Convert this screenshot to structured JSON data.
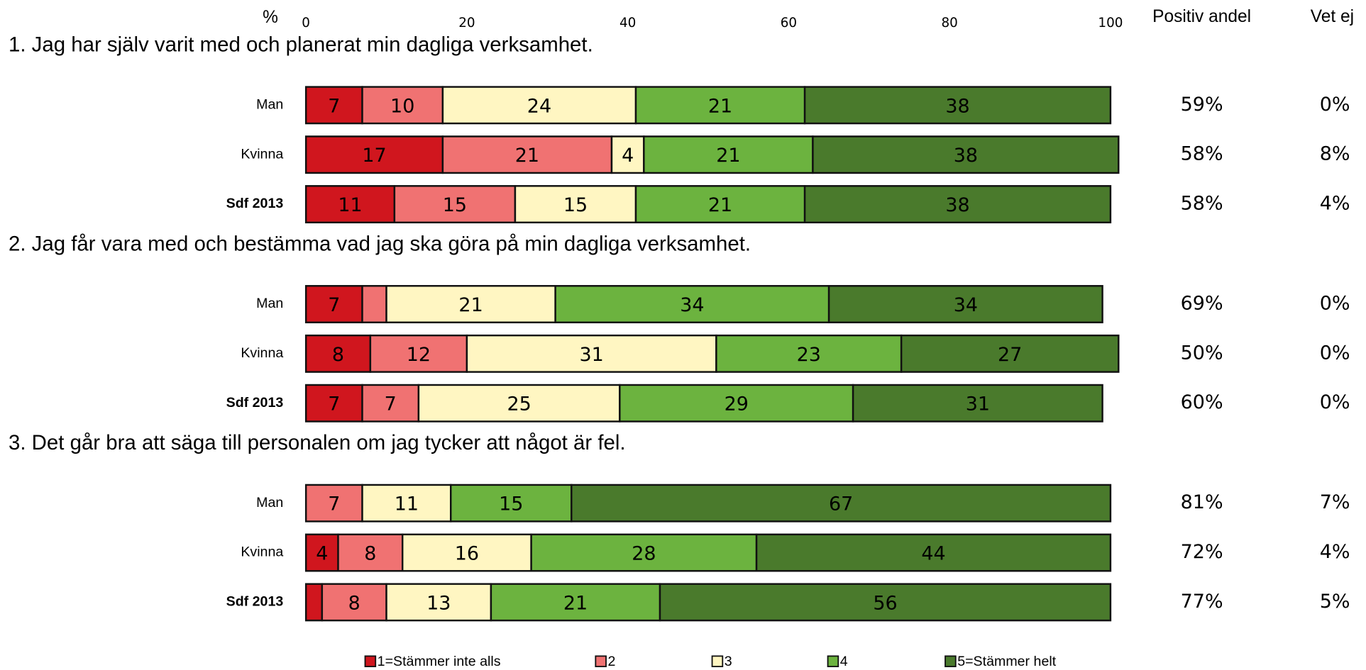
{
  "chart_data": {
    "type": "stacked_bar_h",
    "x_label": "%",
    "xlim": [
      0,
      100
    ],
    "xticks": [
      0,
      20,
      40,
      60,
      80,
      100
    ],
    "column_headers": [
      "Positiv andel",
      "Vet ej"
    ],
    "series": [
      {
        "name": "1=Stämmer inte alls",
        "color": "#d0161e"
      },
      {
        "name": "2",
        "color": "#f07272"
      },
      {
        "name": "3",
        "color": "#fff6c2"
      },
      {
        "name": "4",
        "color": "#6cb33f"
      },
      {
        "name": "5=Stämmer helt",
        "color": "#4a7a2c"
      }
    ],
    "groups": [
      {
        "title": "1. Jag har själv varit med och planerat min dagliga verksamhet.",
        "categories": [
          "Man",
          "Kvinna",
          "Sdf 2013"
        ],
        "values": [
          [
            7,
            10,
            24,
            21,
            38
          ],
          [
            17,
            21,
            4,
            21,
            38
          ],
          [
            11,
            15,
            15,
            21,
            38
          ]
        ],
        "positive_share": [
          "59%",
          "58%",
          "58%"
        ],
        "dont_know": [
          "0%",
          "8%",
          "4%"
        ]
      },
      {
        "title": "2. Jag får vara med och bestämma vad jag ska göra på min dagliga verksamhet.",
        "categories": [
          "Man",
          "Kvinna",
          "Sdf 2013"
        ],
        "values": [
          [
            7,
            3,
            21,
            34,
            34
          ],
          [
            8,
            12,
            31,
            23,
            27
          ],
          [
            7,
            7,
            25,
            29,
            31
          ]
        ],
        "positive_share": [
          "69%",
          "50%",
          "60%"
        ],
        "dont_know": [
          "0%",
          "0%",
          "0%"
        ]
      },
      {
        "title": "3. Det går bra att säga till personalen om jag tycker att något är fel.",
        "categories": [
          "Man",
          "Kvinna",
          "Sdf 2013"
        ],
        "values": [
          [
            0,
            7,
            11,
            15,
            67
          ],
          [
            4,
            8,
            16,
            28,
            44
          ],
          [
            2,
            8,
            13,
            21,
            56
          ]
        ],
        "positive_share": [
          "81%",
          "72%",
          "77%"
        ],
        "dont_know": [
          "7%",
          "4%",
          "5%"
        ]
      }
    ]
  }
}
